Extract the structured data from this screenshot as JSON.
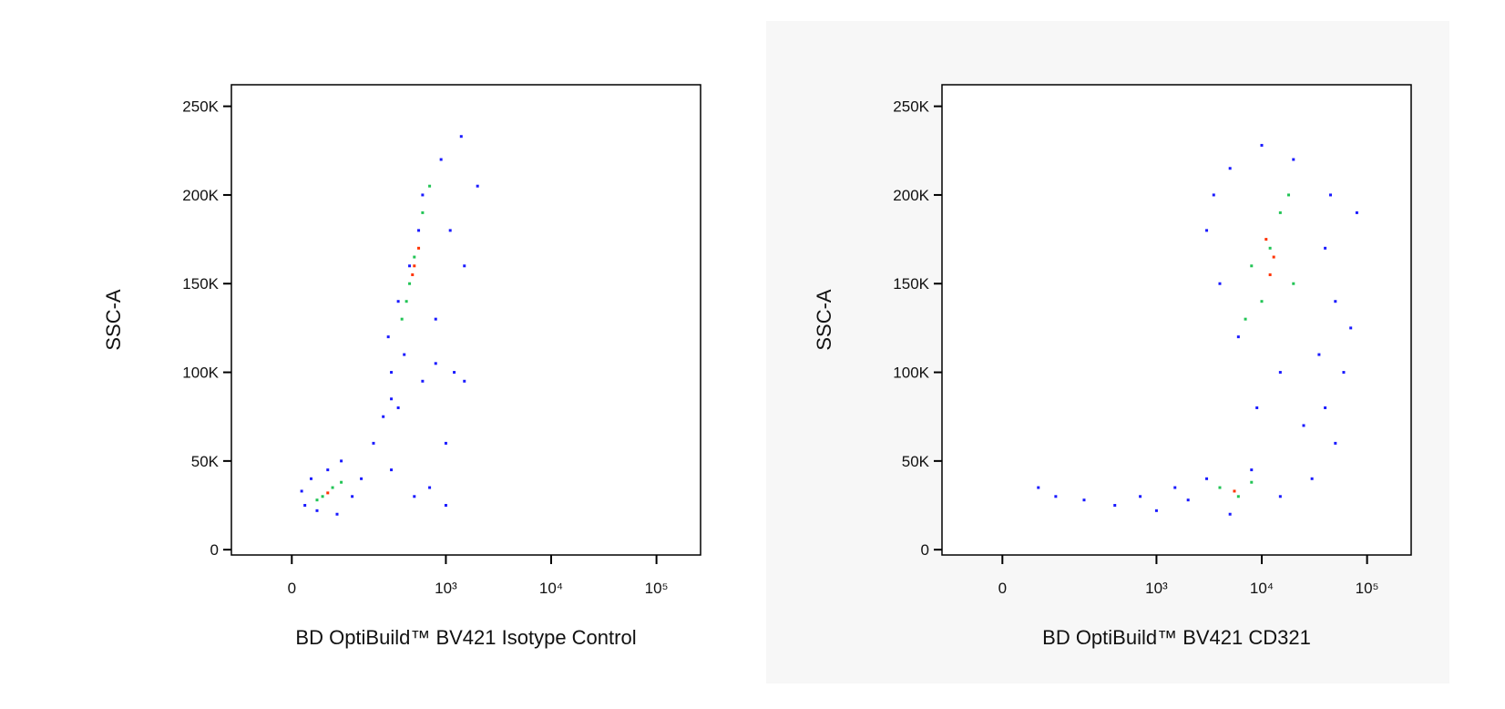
{
  "chart_data": [
    {
      "type": "scatter",
      "x_label": "BD OptiBuild™ BV421 Isotype Control",
      "y_label": "SSC-A",
      "xscale": "biexponential",
      "xlim": [
        -120,
        262144
      ],
      "xticks": [
        0,
        {
          "value": 1000,
          "label": "10³"
        },
        {
          "value": 10000,
          "label": "10⁴"
        },
        {
          "value": 100000,
          "label": "10⁵"
        }
      ],
      "ylim": [
        -3000,
        262144
      ],
      "yticks": [
        0,
        {
          "value": 50000,
          "label": "50K"
        },
        {
          "value": 100000,
          "label": "100K"
        },
        {
          "value": 150000,
          "label": "150K"
        },
        {
          "value": 200000,
          "label": "200K"
        },
        {
          "value": 250000,
          "label": "250K"
        }
      ],
      "series": [
        {
          "color": "#1a1aff",
          "x": [
            20,
            40,
            60,
            90,
            120,
            15,
            150,
            200,
            250,
            300,
            350,
            300,
            400,
            600,
            800,
            1200,
            1500,
            700,
            500,
            1000,
            280,
            350,
            450,
            800,
            1100,
            1400,
            2000,
            900,
            600,
            550,
            300,
            80,
            30,
            1000,
            1500
          ],
          "values": [
            25000,
            22000,
            45000,
            50000,
            30000,
            33000,
            40000,
            60000,
            75000,
            85000,
            80000,
            100000,
            110000,
            95000,
            105000,
            100000,
            95000,
            35000,
            30000,
            25000,
            120000,
            140000,
            160000,
            130000,
            180000,
            233000,
            205000,
            220000,
            200000,
            180000,
            45000,
            20000,
            40000,
            60000,
            160000
          ]
        },
        {
          "color": "#22c455",
          "x": [
            50,
            70,
            40,
            90,
            380,
            450,
            500,
            600,
            700,
            420
          ],
          "values": [
            30000,
            35000,
            28000,
            38000,
            130000,
            150000,
            165000,
            190000,
            205000,
            140000
          ]
        },
        {
          "color": "#ff3300",
          "x": [
            60,
            500,
            550,
            480
          ],
          "values": [
            32000,
            160000,
            170000,
            155000
          ]
        }
      ]
    },
    {
      "type": "scatter",
      "x_label": "BD OptiBuild™ BV421 CD321",
      "y_label": "SSC-A",
      "xscale": "biexponential",
      "xlim": [
        -120,
        262144
      ],
      "xticks": [
        0,
        {
          "value": 1000,
          "label": "10³"
        },
        {
          "value": 10000,
          "label": "10⁴"
        },
        {
          "value": 100000,
          "label": "10⁵"
        }
      ],
      "ylim": [
        -3000,
        262144
      ],
      "yticks": [
        0,
        {
          "value": 50000,
          "label": "50K"
        },
        {
          "value": 100000,
          "label": "100K"
        },
        {
          "value": 150000,
          "label": "150K"
        },
        {
          "value": 200000,
          "label": "200K"
        },
        {
          "value": 250000,
          "label": "250K"
        }
      ],
      "series": [
        {
          "color": "#1a1aff",
          "x": [
            60,
            100,
            200,
            400,
            700,
            1000,
            1500,
            2000,
            3000,
            5000,
            8000,
            15000,
            30000,
            50000,
            40000,
            60000,
            35000,
            70000,
            80000,
            4000,
            3500,
            5000,
            10000,
            20000,
            40000,
            50000,
            6000,
            15000,
            9000,
            25000,
            45000,
            3000
          ],
          "values": [
            35000,
            30000,
            28000,
            25000,
            30000,
            22000,
            35000,
            28000,
            40000,
            20000,
            45000,
            30000,
            40000,
            60000,
            80000,
            100000,
            110000,
            125000,
            190000,
            150000,
            200000,
            215000,
            228000,
            220000,
            170000,
            140000,
            120000,
            100000,
            80000,
            70000,
            200000,
            180000
          ]
        },
        {
          "color": "#22c455",
          "x": [
            4000,
            6000,
            8000,
            10000,
            12000,
            15000,
            8000,
            20000,
            7000,
            18000
          ],
          "values": [
            35000,
            30000,
            38000,
            140000,
            170000,
            190000,
            160000,
            150000,
            130000,
            200000
          ]
        },
        {
          "color": "#ff3300",
          "x": [
            5500,
            12000,
            11000,
            13000
          ],
          "values": [
            33000,
            155000,
            175000,
            165000
          ]
        }
      ]
    }
  ]
}
